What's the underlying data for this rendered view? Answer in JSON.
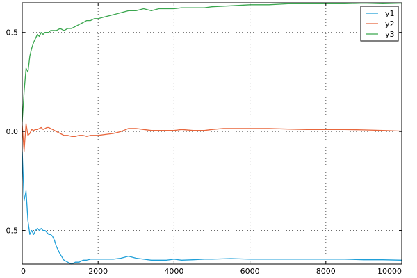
{
  "chart_data": {
    "type": "line",
    "title": "",
    "xlabel": "",
    "ylabel": "",
    "xlim": [
      0,
      10000
    ],
    "ylim": [
      -0.67,
      0.65
    ],
    "xticks": [
      0,
      2000,
      4000,
      6000,
      8000,
      10000
    ],
    "yticks": [
      -0.5,
      0.0,
      0.5
    ],
    "xtick_labels": [
      "0",
      "2000",
      "4000",
      "6000",
      "8000",
      "10000"
    ],
    "ytick_labels": [
      "-0.5",
      "0.0",
      "0.5"
    ],
    "grid": true,
    "legend_position": "top-right",
    "series": [
      {
        "name": "y1",
        "color": "#1f9fd8",
        "x": [
          0,
          50,
          100,
          150,
          200,
          250,
          300,
          350,
          400,
          450,
          500,
          550,
          600,
          650,
          700,
          750,
          800,
          850,
          900,
          950,
          1000,
          1100,
          1200,
          1300,
          1400,
          1500,
          1600,
          1700,
          1800,
          1900,
          2000,
          2200,
          2400,
          2600,
          2800,
          3000,
          3200,
          3400,
          3600,
          3800,
          4000,
          4200,
          4500,
          4800,
          5000,
          5500,
          6000,
          6500,
          7000,
          7500,
          8000,
          8500,
          9000,
          9500,
          10000
        ],
        "y": [
          -0.1,
          -0.35,
          -0.3,
          -0.45,
          -0.52,
          -0.5,
          -0.52,
          -0.5,
          -0.49,
          -0.5,
          -0.49,
          -0.5,
          -0.5,
          -0.51,
          -0.52,
          -0.52,
          -0.53,
          -0.55,
          -0.58,
          -0.6,
          -0.62,
          -0.65,
          -0.66,
          -0.67,
          -0.66,
          -0.66,
          -0.65,
          -0.65,
          -0.645,
          -0.645,
          -0.645,
          -0.645,
          -0.645,
          -0.64,
          -0.63,
          -0.64,
          -0.645,
          -0.65,
          -0.65,
          -0.65,
          -0.645,
          -0.65,
          -0.648,
          -0.645,
          -0.645,
          -0.642,
          -0.645,
          -0.645,
          -0.645,
          -0.645,
          -0.645,
          -0.645,
          -0.648,
          -0.648,
          -0.65
        ]
      },
      {
        "name": "y2",
        "color": "#e8663c",
        "x": [
          0,
          50,
          100,
          150,
          200,
          250,
          300,
          350,
          400,
          450,
          500,
          550,
          600,
          650,
          700,
          750,
          800,
          900,
          1000,
          1100,
          1200,
          1300,
          1400,
          1500,
          1600,
          1700,
          1800,
          1900,
          2000,
          2200,
          2400,
          2600,
          2800,
          3000,
          3200,
          3400,
          3600,
          4000,
          4200,
          4500,
          4800,
          5000,
          5300,
          5500,
          6000,
          6500,
          7000,
          7500,
          8000,
          8500,
          9000,
          9500,
          10000
        ],
        "y": [
          0.03,
          -0.1,
          0.04,
          -0.02,
          -0.01,
          0.01,
          0.005,
          0.01,
          0.01,
          0.015,
          0.02,
          0.01,
          0.015,
          0.02,
          0.02,
          0.015,
          0.01,
          0.0,
          -0.01,
          -0.02,
          -0.02,
          -0.025,
          -0.025,
          -0.02,
          -0.02,
          -0.025,
          -0.02,
          -0.02,
          -0.02,
          -0.015,
          -0.01,
          0.0,
          0.015,
          0.015,
          0.01,
          0.005,
          0.005,
          0.005,
          0.01,
          0.005,
          0.005,
          0.01,
          0.015,
          0.015,
          0.015,
          0.015,
          0.012,
          0.01,
          0.01,
          0.01,
          0.008,
          0.005,
          0.002
        ]
      },
      {
        "name": "y3",
        "color": "#3aa64e",
        "x": [
          0,
          50,
          100,
          150,
          200,
          250,
          300,
          350,
          400,
          450,
          500,
          550,
          600,
          650,
          700,
          750,
          800,
          900,
          1000,
          1100,
          1200,
          1300,
          1400,
          1500,
          1600,
          1700,
          1800,
          1900,
          2000,
          2200,
          2400,
          2600,
          2800,
          3000,
          3200,
          3400,
          3600,
          3800,
          4000,
          4200,
          4500,
          4800,
          5000,
          5500,
          6000,
          6500,
          7000,
          7500,
          8000,
          8500,
          9000,
          9500,
          10000
        ],
        "y": [
          0.05,
          0.2,
          0.32,
          0.3,
          0.38,
          0.42,
          0.45,
          0.47,
          0.49,
          0.48,
          0.5,
          0.49,
          0.5,
          0.5,
          0.5,
          0.51,
          0.51,
          0.51,
          0.52,
          0.51,
          0.52,
          0.52,
          0.53,
          0.54,
          0.55,
          0.56,
          0.56,
          0.57,
          0.57,
          0.58,
          0.59,
          0.6,
          0.61,
          0.61,
          0.62,
          0.61,
          0.62,
          0.62,
          0.62,
          0.625,
          0.625,
          0.625,
          0.63,
          0.635,
          0.64,
          0.64,
          0.645,
          0.645,
          0.645,
          0.645,
          0.648,
          0.645,
          0.648
        ]
      }
    ]
  }
}
